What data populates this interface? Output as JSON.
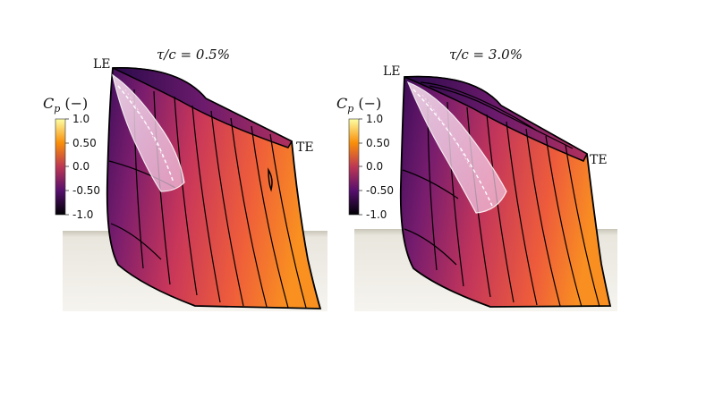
{
  "colorbar": {
    "variable": "C",
    "subscript": "p",
    "unit": "(−)",
    "ticks": [
      "1.0",
      "0.50",
      "0.0",
      "-0.50",
      "-1.0"
    ],
    "colormap": [
      "#fcffa4",
      "#f98e09",
      "#bc3754",
      "#57106e",
      "#000004"
    ]
  },
  "panels": [
    {
      "title": "τ/c = 0.5%",
      "leading_edge": "LE",
      "trailing_edge": "TE"
    },
    {
      "title": "τ/c = 3.0%",
      "leading_edge": "LE",
      "trailing_edge": "TE"
    }
  ]
}
